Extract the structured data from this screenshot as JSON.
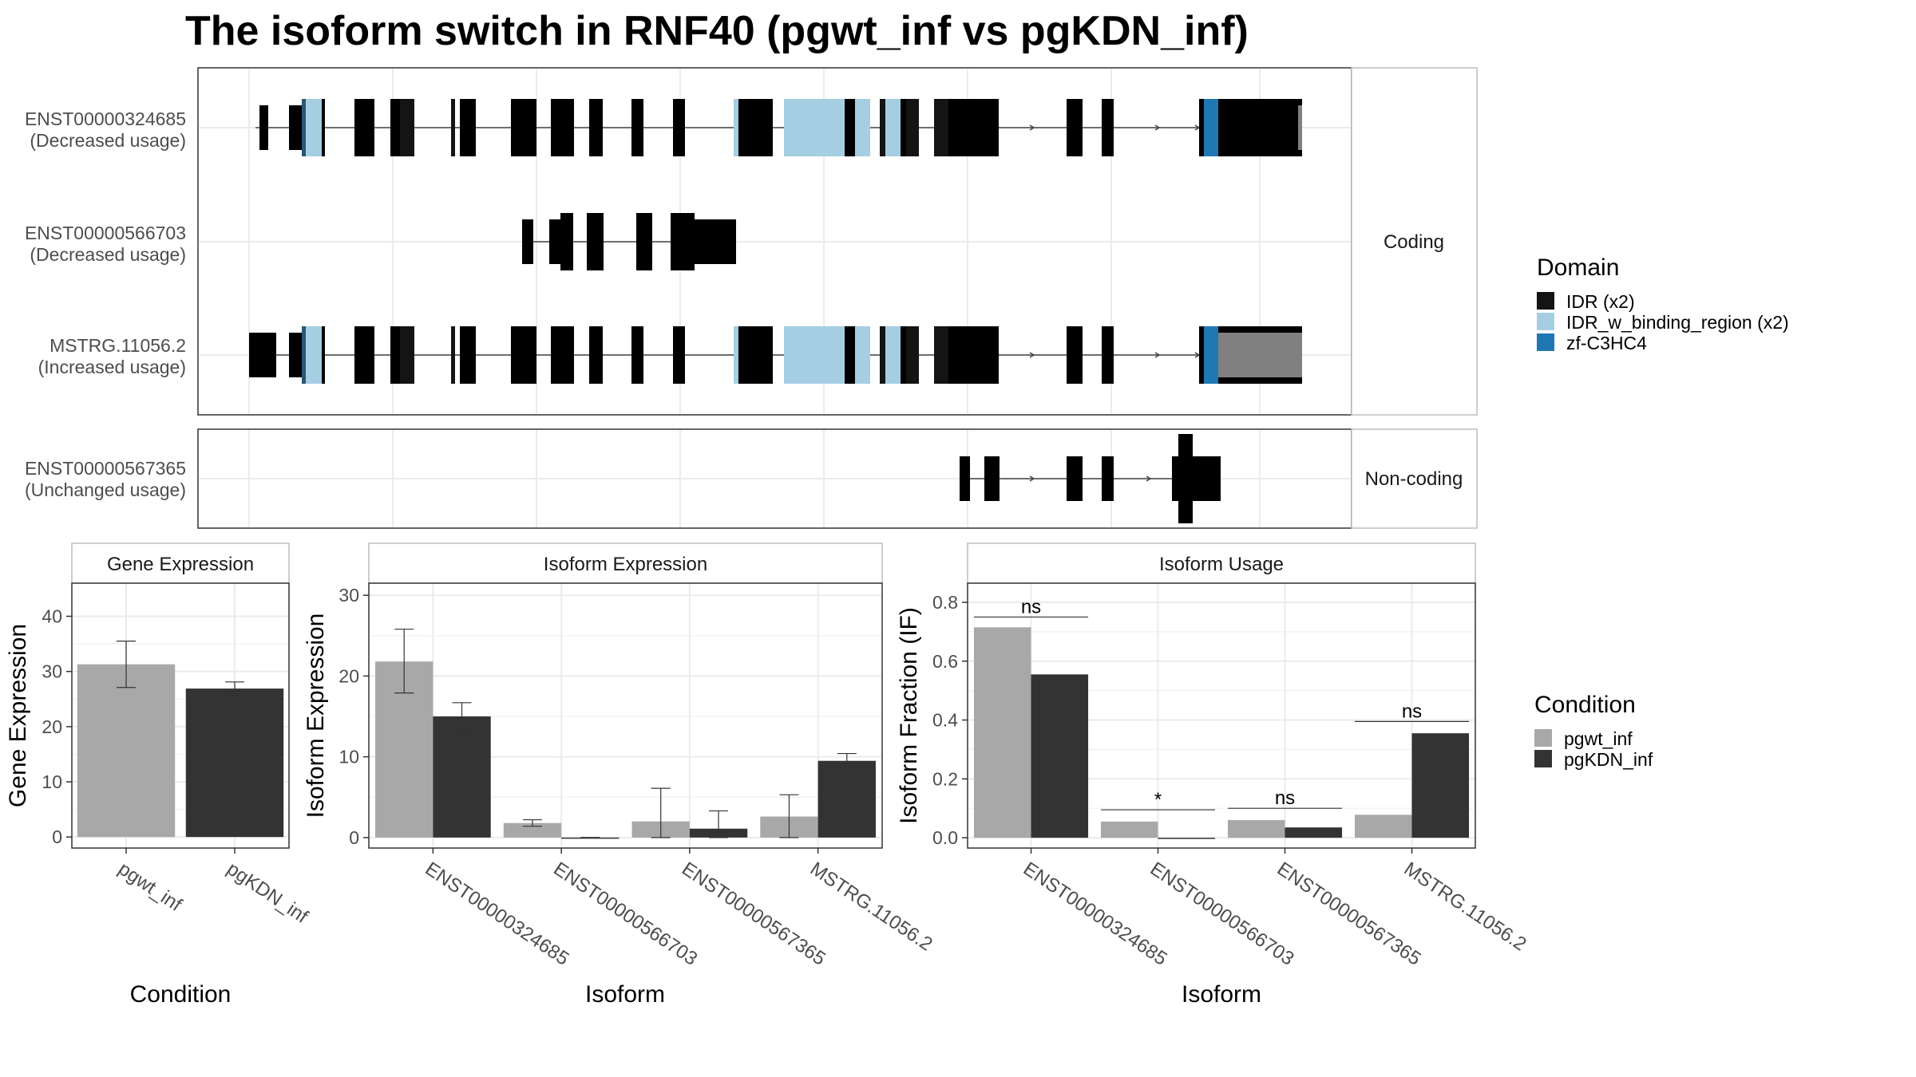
{
  "title": "The isoform switch in RNF40 (pgwt_inf vs pgKDN_inf)",
  "colors": {
    "intron": "#444444",
    "exon": "#808080",
    "IDR": "#141414",
    "IDR_w_binding_region": "#a6cee3",
    "zf-C3HC4": "#1f78b4",
    "pgwt_inf": "#a8a8a8",
    "pgKDN_inf": "#333333",
    "grid": "#ebebeb",
    "frame": "#333333",
    "strip_border": "#bdbdbd"
  },
  "structure": {
    "panels": [
      {
        "label": "Coding",
        "tracks": [
          {
            "id": "ENST00000324685",
            "usage": "(Decreased usage)"
          },
          {
            "id": "ENST00000566703",
            "usage": "(Decreased usage)"
          },
          {
            "id": "MSTRG.11056.2",
            "usage": "(Increased usage)"
          }
        ]
      },
      {
        "label": "Non-coding",
        "tracks": [
          {
            "id": "ENST00000567365",
            "usage": "(Unchanged usage)"
          }
        ]
      }
    ],
    "legend": {
      "title": "Domain",
      "items": [
        {
          "label": "IDR (x2)",
          "color_key": "IDR"
        },
        {
          "label": "IDR_w_binding_region (x2)",
          "color_key": "IDR_w_binding_region"
        },
        {
          "label": "zf-C3HC4",
          "color_key": "zf-C3HC4"
        }
      ]
    }
  },
  "chart_data": [
    {
      "type": "bar",
      "strip": "Gene Expression",
      "xlabel": "Condition",
      "ylabel": "Gene Expression",
      "categories": [
        "pgwt_inf",
        "pgKDN_inf"
      ],
      "values": [
        31.3,
        26.9
      ],
      "err_low": [
        27.1,
        25.8
      ],
      "err_high": [
        35.5,
        28.1
      ],
      "ylim": [
        -2,
        46
      ],
      "yticks": [
        0,
        10,
        20,
        30,
        40
      ]
    },
    {
      "type": "bar",
      "strip": "Isoform Expression",
      "xlabel": "Isoform",
      "ylabel": "Isoform Expression",
      "categories": [
        "ENST00000324685",
        "ENST00000566703",
        "ENST00000567365",
        "MSTRG.11056.2"
      ],
      "series": [
        {
          "name": "pgwt_inf",
          "values": [
            21.8,
            1.8,
            2.0,
            2.6
          ],
          "err_low": [
            17.9,
            1.4,
            0.0,
            0.0
          ],
          "err_high": [
            25.8,
            2.2,
            6.1,
            5.3
          ]
        },
        {
          "name": "pgKDN_inf",
          "values": [
            15.0,
            0.0,
            1.1,
            9.5
          ],
          "err_low": [
            13.4,
            0.0,
            0.0,
            8.6
          ],
          "err_high": [
            16.7,
            0.0,
            3.3,
            10.4
          ]
        }
      ],
      "ylim": [
        -1.3,
        31.5
      ],
      "yticks": [
        0,
        10,
        20,
        30
      ]
    },
    {
      "type": "bar",
      "strip": "Isoform Usage",
      "xlabel": "Isoform",
      "ylabel": "Isoform Fraction (IF)",
      "categories": [
        "ENST00000324685",
        "ENST00000566703",
        "ENST00000567365",
        "MSTRG.11056.2"
      ],
      "series": [
        {
          "name": "pgwt_inf",
          "values": [
            0.715,
            0.055,
            0.06,
            0.078
          ]
        },
        {
          "name": "pgKDN_inf",
          "values": [
            0.555,
            0.0,
            0.035,
            0.355
          ]
        }
      ],
      "significance": [
        "ns",
        "*",
        "ns",
        "ns"
      ],
      "sig_y": [
        0.75,
        0.095,
        0.1,
        0.395
      ],
      "ylim": [
        -0.035,
        0.865
      ],
      "yticks": [
        0.0,
        0.2,
        0.4,
        0.6,
        0.8
      ],
      "ytick_labels": [
        "0.0",
        "0.2",
        "0.4",
        "0.6",
        "0.8"
      ]
    }
  ],
  "condition_legend": {
    "title": "Condition",
    "items": [
      {
        "label": "pgwt_inf",
        "color_key": "pgwt_inf"
      },
      {
        "label": "pgKDN_inf",
        "color_key": "pgKDN_inf"
      }
    ]
  }
}
